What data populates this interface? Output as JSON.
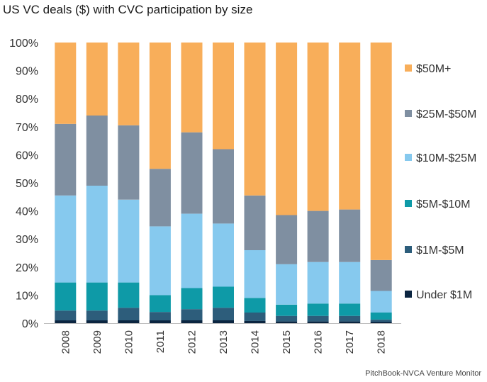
{
  "chart_data": {
    "type": "bar",
    "stacked": true,
    "title": "US VC deals ($) with CVC participation by size",
    "source": "PitchBook-NVCA Venture Monitor",
    "xlabel": "",
    "ylabel": "",
    "ylim": [
      0,
      100
    ],
    "y_ticks": [
      "0%",
      "10%",
      "20%",
      "30%",
      "40%",
      "50%",
      "60%",
      "70%",
      "80%",
      "90%",
      "100%"
    ],
    "grid": false,
    "legend_position": "right",
    "categories": [
      "2008",
      "2009",
      "2010",
      "2011",
      "2012",
      "2013",
      "2014",
      "2015",
      "2016",
      "2017",
      "2018"
    ],
    "series": [
      {
        "name": "Under $1M",
        "color": "#0b2540",
        "values": [
          1.0,
          1.0,
          1.0,
          1.0,
          1.0,
          1.0,
          0.8,
          0.6,
          0.6,
          0.6,
          0.5
        ]
      },
      {
        "name": "$1M-$5M",
        "color": "#2d5d7b",
        "values": [
          3.5,
          3.5,
          4.5,
          3.0,
          4.0,
          4.5,
          3.0,
          2.0,
          2.0,
          2.0,
          0.8
        ]
      },
      {
        "name": "$5M-$10M",
        "color": "#0e9aa7",
        "values": [
          10.0,
          10.0,
          9.0,
          6.0,
          7.5,
          7.5,
          5.2,
          4.0,
          4.4,
          4.4,
          2.5
        ]
      },
      {
        "name": "$10M-$25M",
        "color": "#86c9ee",
        "values": [
          31.0,
          34.5,
          29.5,
          24.5,
          26.5,
          22.5,
          17.0,
          14.4,
          14.8,
          14.8,
          7.7
        ]
      },
      {
        "name": "$25M-$50M",
        "color": "#7f8fa1",
        "values": [
          25.5,
          25.0,
          26.5,
          20.5,
          29.0,
          26.5,
          19.5,
          17.5,
          18.2,
          18.7,
          11.0
        ]
      },
      {
        "name": "$50M+",
        "color": "#f8ae5a",
        "values": [
          29.0,
          26.0,
          29.5,
          45.0,
          32.0,
          38.0,
          54.5,
          61.5,
          60.0,
          59.5,
          77.5
        ]
      }
    ],
    "legend_order": [
      "$50M+",
      "$25M-$50M",
      "$10M-$25M",
      "$5M-$10M",
      "$1M-$5M",
      "Under $1M"
    ]
  }
}
